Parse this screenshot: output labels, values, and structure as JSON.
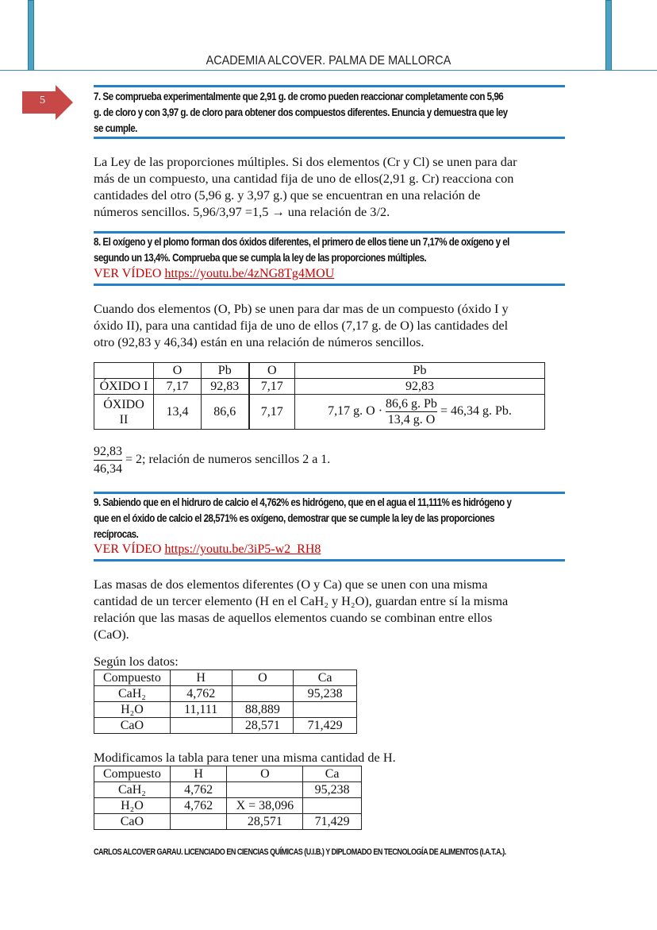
{
  "header": {
    "title": "ACADEMIA ALCOVER. PALMA DE MALLORCA",
    "page_number": "5"
  },
  "q7": {
    "lines": [
      "7. Se comprueba experimentalmente que 2,91 g. de cromo pueden reaccionar completamente con 5,96",
      "g. de cloro y con 3,97 g. de cloro para obtener dos compuestos diferentes. Enuncia y demuestra que ley",
      "se cumple."
    ],
    "answer": [
      "La Ley de las proporciones múltiples. Si dos elementos (Cr y Cl) se unen para dar",
      "más de un compuesto, una cantidad fija de uno de ellos(2,91 g. Cr) reacciona con",
      "cantidades del otro (5,96 g. y 3,97 g.) que se encuentran en una relación de",
      "números sencillos. 5,96/3,97 =1,5 → una relación de 3/2."
    ]
  },
  "q8": {
    "lines": [
      "8. El oxígeno y el plomo forman dos óxidos diferentes, el primero de ellos tiene un 7,17% de oxígeno y el",
      "segundo un 13,4%. Comprueba que se cumpla la ley de las proporciones múltiples."
    ],
    "video_label": "VER VÍDEO",
    "video_url": "https://youtu.be/4zNG8Tg4MOU",
    "answer": [
      "Cuando dos elementos (O, Pb) se unen para dar mas de un compuesto (óxido I y",
      "óxido II), para una cantidad fija de uno de ellos (7,17 g. de O) las cantidades del",
      "otro (92,83 y 46,34) están en una relación de números sencillos."
    ],
    "table": {
      "header": [
        "",
        "O",
        "Pb",
        "O",
        "Pb"
      ],
      "row1": [
        "ÓXIDO I",
        "7,17",
        "92,83",
        "7,17",
        "92,83"
      ],
      "row2": [
        "ÓXIDO II",
        "13,4",
        "86,6",
        "7,17"
      ],
      "calc": {
        "left": "7,17 g. O ·",
        "num": "86,6 g. Pb",
        "den": "13,4 g. O",
        "right": "= 46,34 g. Pb."
      }
    },
    "ratio": {
      "num": "92,83",
      "den": "46,34",
      "text": "= 2; relación de numeros sencillos 2 a 1."
    }
  },
  "q9": {
    "lines": [
      "9. Sabiendo que en el hidruro de calcio el 4,762% es hidrógeno, que en el agua el 11,111% es hidrógeno y",
      "que en el óxido de calcio el 28,571% es oxígeno, demostrar que se cumple la ley de las proporciones",
      "recíprocas."
    ],
    "video_label": "VER VÍDEO",
    "video_url": "https://youtu.be/3iP5-w2_RH8",
    "answer": [
      "Las masas de dos elementos diferentes (O y Ca) que se unen con una misma",
      "cantidad de un tercer elemento (H en el CaH₂ y H₂O), guardan entre sí la misma",
      "relación que las masas de aquellos elementos cuando se combinan entre ellos",
      "(CaO)."
    ],
    "table1_label": "Según los datos:",
    "table1": [
      [
        "Compuesto",
        "H",
        "O",
        "Ca"
      ],
      [
        "CaH₂",
        "4,762",
        "",
        "95,238"
      ],
      [
        "H₂O",
        "11,111",
        "88,889",
        ""
      ],
      [
        "CaO",
        "",
        "28,571",
        "71,429"
      ]
    ],
    "table2_label": "Modificamos la tabla para tener una misma cantidad de H.",
    "table2": [
      [
        "Compuesto",
        "H",
        "O",
        "Ca"
      ],
      [
        "CaH₂",
        "4,762",
        "",
        "95,238"
      ],
      [
        "H₂O",
        "4,762",
        "X = 38,096",
        ""
      ],
      [
        "CaO",
        "",
        "28,571",
        "71,429"
      ]
    ]
  },
  "footer": "CARLOS ALCOVER GARAU.  LICENCIADO EN CIENCIAS QUÍMICAS (U.I.B.) Y DIPLOMADO EN TECNOLOGÍA DE ALIMENTOS (I.A.T.A.).",
  "colors": {
    "accent_blue": "#2680c8",
    "arrow_red": "#c84848",
    "link_red": "#cc0000"
  }
}
